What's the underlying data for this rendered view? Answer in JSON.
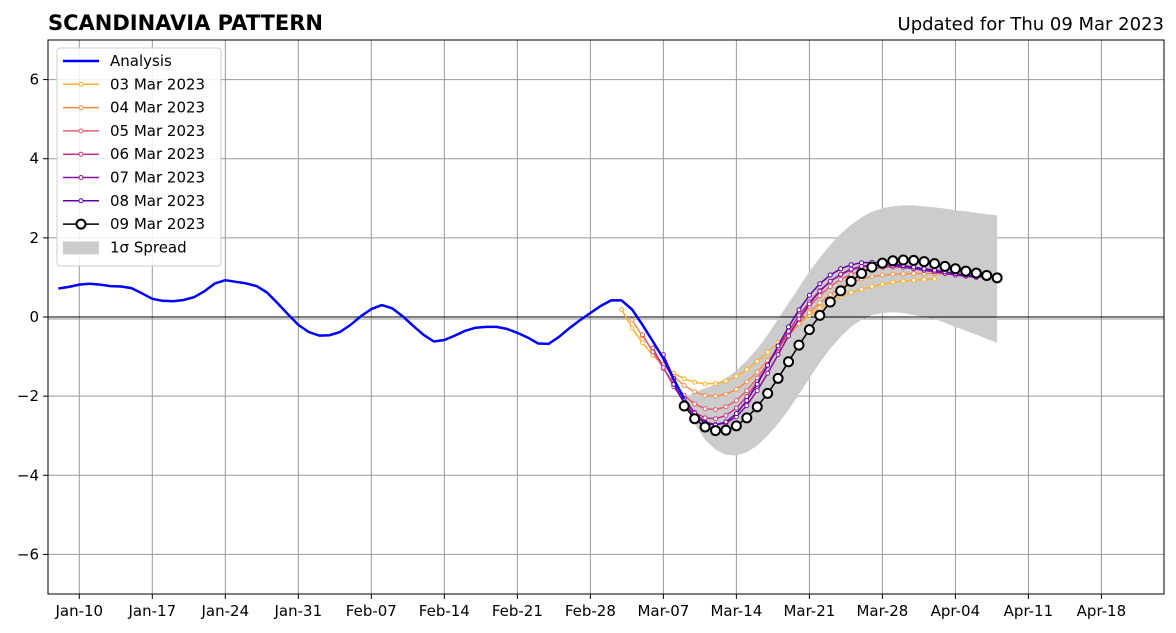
{
  "chart_data": {
    "type": "line",
    "title": "SCANDINAVIA PATTERN",
    "subtitle": "Updated for Thu 09 Mar 2023",
    "xlabel": "",
    "ylabel": "",
    "xlim": [
      "2023-01-07",
      "2023-04-24"
    ],
    "ylim": [
      -7,
      7
    ],
    "x_ticks": [
      "Jan-10",
      "Jan-17",
      "Jan-24",
      "Jan-31",
      "Feb-07",
      "Feb-14",
      "Feb-21",
      "Feb-28",
      "Mar-07",
      "Mar-14",
      "Mar-21",
      "Mar-28",
      "Apr-04",
      "Apr-11",
      "Apr-18"
    ],
    "x_tick_dates": [
      "2023-01-10",
      "2023-01-17",
      "2023-01-24",
      "2023-01-31",
      "2023-02-07",
      "2023-02-14",
      "2023-02-21",
      "2023-02-28",
      "2023-03-07",
      "2023-03-14",
      "2023-03-21",
      "2023-03-28",
      "2023-04-04",
      "2023-04-11",
      "2023-04-18"
    ],
    "y_ticks": [
      -6,
      -4,
      -2,
      0,
      2,
      4,
      6
    ],
    "y_tick_labels": [
      "−6",
      "−4",
      "−2",
      "0",
      "2",
      "4",
      "6"
    ],
    "grid": true,
    "legend_placement": "top-left",
    "series": [
      {
        "name": "Analysis",
        "color": "#0000ff",
        "marker": "none",
        "x": [
          "2023-01-08",
          "2023-01-09",
          "2023-01-10",
          "2023-01-11",
          "2023-01-12",
          "2023-01-13",
          "2023-01-14",
          "2023-01-15",
          "2023-01-16",
          "2023-01-17",
          "2023-01-18",
          "2023-01-19",
          "2023-01-20",
          "2023-01-21",
          "2023-01-22",
          "2023-01-23",
          "2023-01-24",
          "2023-01-25",
          "2023-01-26",
          "2023-01-27",
          "2023-01-28",
          "2023-01-29",
          "2023-01-30",
          "2023-01-31",
          "2023-02-01",
          "2023-02-02",
          "2023-02-03",
          "2023-02-04",
          "2023-02-05",
          "2023-02-06",
          "2023-02-07",
          "2023-02-08",
          "2023-02-09",
          "2023-02-10",
          "2023-02-11",
          "2023-02-12",
          "2023-02-13",
          "2023-02-14",
          "2023-02-15",
          "2023-02-16",
          "2023-02-17",
          "2023-02-18",
          "2023-02-19",
          "2023-02-20",
          "2023-02-21",
          "2023-02-22",
          "2023-02-23",
          "2023-02-24",
          "2023-02-25",
          "2023-02-26",
          "2023-02-27",
          "2023-02-28",
          "2023-03-01",
          "2023-03-02",
          "2023-03-03",
          "2023-03-04",
          "2023-03-05",
          "2023-03-06",
          "2023-03-07",
          "2023-03-08",
          "2023-03-09"
        ],
        "y": [
          0.72,
          0.76,
          0.82,
          0.84,
          0.82,
          0.78,
          0.77,
          0.73,
          0.6,
          0.46,
          0.41,
          0.4,
          0.43,
          0.5,
          0.65,
          0.85,
          0.93,
          0.89,
          0.85,
          0.78,
          0.62,
          0.35,
          0.07,
          -0.2,
          -0.38,
          -0.47,
          -0.46,
          -0.38,
          -0.2,
          0.02,
          0.2,
          0.3,
          0.22,
          0.02,
          -0.22,
          -0.45,
          -0.62,
          -0.58,
          -0.47,
          -0.35,
          -0.27,
          -0.25,
          -0.25,
          -0.3,
          -0.4,
          -0.52,
          -0.67,
          -0.68,
          -0.5,
          -0.28,
          -0.08,
          0.1,
          0.28,
          0.42,
          0.42,
          0.19,
          -0.2,
          -0.62,
          -1.05,
          -1.58,
          -2.07
        ]
      },
      {
        "name": "03 Mar 2023",
        "color": "#fbb12e",
        "marker": "small-dot",
        "x": [
          "2023-03-03",
          "2023-03-04",
          "2023-03-05",
          "2023-03-06",
          "2023-03-07",
          "2023-03-08",
          "2023-03-09",
          "2023-03-10",
          "2023-03-11",
          "2023-03-12",
          "2023-03-13",
          "2023-03-14",
          "2023-03-15",
          "2023-03-16",
          "2023-03-17",
          "2023-03-18",
          "2023-03-19",
          "2023-03-20",
          "2023-03-21",
          "2023-03-22",
          "2023-03-23",
          "2023-03-24",
          "2023-03-25",
          "2023-03-26",
          "2023-03-27",
          "2023-03-28",
          "2023-03-29",
          "2023-03-30",
          "2023-03-31",
          "2023-04-01",
          "2023-04-02"
        ],
        "y": [
          0.19,
          -0.28,
          -0.65,
          -0.97,
          -1.22,
          -1.42,
          -1.56,
          -1.65,
          -1.69,
          -1.68,
          -1.62,
          -1.5,
          -1.33,
          -1.12,
          -0.89,
          -0.65,
          -0.4,
          -0.17,
          0.05,
          0.23,
          0.39,
          0.52,
          0.62,
          0.7,
          0.77,
          0.83,
          0.88,
          0.91,
          0.93,
          0.95,
          0.96
        ]
      },
      {
        "name": "04 Mar 2023",
        "color": "#f58e4a",
        "marker": "small-dot",
        "x": [
          "2023-03-04",
          "2023-03-05",
          "2023-03-06",
          "2023-03-07",
          "2023-03-08",
          "2023-03-09",
          "2023-03-10",
          "2023-03-11",
          "2023-03-12",
          "2023-03-13",
          "2023-03-14",
          "2023-03-15",
          "2023-03-16",
          "2023-03-17",
          "2023-03-18",
          "2023-03-19",
          "2023-03-20",
          "2023-03-21",
          "2023-03-22",
          "2023-03-23",
          "2023-03-24",
          "2023-03-25",
          "2023-03-26",
          "2023-03-27",
          "2023-03-28",
          "2023-03-29",
          "2023-03-30",
          "2023-03-31",
          "2023-04-01",
          "2023-04-02",
          "2023-04-03"
        ],
        "y": [
          -0.08,
          -0.48,
          -0.86,
          -1.21,
          -1.5,
          -1.73,
          -1.89,
          -1.98,
          -2.0,
          -1.95,
          -1.83,
          -1.64,
          -1.39,
          -1.1,
          -0.79,
          -0.47,
          -0.17,
          0.11,
          0.36,
          0.57,
          0.74,
          0.87,
          0.96,
          1.02,
          1.06,
          1.08,
          1.09,
          1.1,
          1.1,
          1.1,
          1.09
        ]
      },
      {
        "name": "05 Mar 2023",
        "color": "#e2626f",
        "marker": "small-dot",
        "x": [
          "2023-03-05",
          "2023-03-06",
          "2023-03-07",
          "2023-03-08",
          "2023-03-09",
          "2023-03-10",
          "2023-03-11",
          "2023-03-12",
          "2023-03-13",
          "2023-03-14",
          "2023-03-15",
          "2023-03-16",
          "2023-03-17",
          "2023-03-18",
          "2023-03-19",
          "2023-03-20",
          "2023-03-21",
          "2023-03-22",
          "2023-03-23",
          "2023-03-24",
          "2023-03-25",
          "2023-03-26",
          "2023-03-27",
          "2023-03-28",
          "2023-03-29",
          "2023-03-30",
          "2023-03-31",
          "2023-04-01",
          "2023-04-02",
          "2023-04-03",
          "2023-04-04"
        ],
        "y": [
          -0.45,
          -0.88,
          -1.3,
          -1.68,
          -1.98,
          -2.2,
          -2.32,
          -2.34,
          -2.27,
          -2.11,
          -1.86,
          -1.54,
          -1.18,
          -0.8,
          -0.42,
          -0.06,
          0.27,
          0.54,
          0.77,
          0.95,
          1.08,
          1.17,
          1.22,
          1.25,
          1.26,
          1.26,
          1.24,
          1.22,
          1.18,
          1.14,
          1.09
        ]
      },
      {
        "name": "06 Mar 2023",
        "color": "#c0368a",
        "marker": "small-dot",
        "x": [
          "2023-03-06",
          "2023-03-07",
          "2023-03-08",
          "2023-03-09",
          "2023-03-10",
          "2023-03-11",
          "2023-03-12",
          "2023-03-13",
          "2023-03-14",
          "2023-03-15",
          "2023-03-16",
          "2023-03-17",
          "2023-03-18",
          "2023-03-19",
          "2023-03-20",
          "2023-03-21",
          "2023-03-22",
          "2023-03-23",
          "2023-03-24",
          "2023-03-25",
          "2023-03-26",
          "2023-03-27",
          "2023-03-28",
          "2023-03-29",
          "2023-03-30",
          "2023-03-31",
          "2023-04-01",
          "2023-04-02",
          "2023-04-03",
          "2023-04-04",
          "2023-04-05"
        ],
        "y": [
          -0.78,
          -1.28,
          -1.76,
          -2.15,
          -2.41,
          -2.55,
          -2.57,
          -2.49,
          -2.3,
          -2.01,
          -1.64,
          -1.22,
          -0.78,
          -0.36,
          0.04,
          0.38,
          0.67,
          0.9,
          1.07,
          1.19,
          1.26,
          1.3,
          1.31,
          1.3,
          1.28,
          1.25,
          1.21,
          1.17,
          1.13,
          1.09,
          1.06
        ]
      },
      {
        "name": "07 Mar 2023",
        "color": "#8e0fa5",
        "marker": "small-dot",
        "x": [
          "2023-03-07",
          "2023-03-08",
          "2023-03-09",
          "2023-03-10",
          "2023-03-11",
          "2023-03-12",
          "2023-03-13",
          "2023-03-14",
          "2023-03-15",
          "2023-03-16",
          "2023-03-17",
          "2023-03-18",
          "2023-03-19",
          "2023-03-20",
          "2023-03-21",
          "2023-03-22",
          "2023-03-23",
          "2023-03-24",
          "2023-03-25",
          "2023-03-26",
          "2023-03-27",
          "2023-03-28",
          "2023-03-29",
          "2023-03-30",
          "2023-03-31",
          "2023-04-01",
          "2023-04-02",
          "2023-04-03",
          "2023-04-04",
          "2023-04-05",
          "2023-04-06"
        ],
        "y": [
          -0.95,
          -1.55,
          -2.05,
          -2.43,
          -2.65,
          -2.72,
          -2.68,
          -2.52,
          -2.24,
          -1.86,
          -1.42,
          -0.95,
          -0.48,
          -0.05,
          0.33,
          0.65,
          0.9,
          1.08,
          1.21,
          1.28,
          1.31,
          1.31,
          1.29,
          1.26,
          1.22,
          1.18,
          1.14,
          1.1,
          1.06,
          1.03,
          1.0
        ]
      },
      {
        "name": "08 Mar 2023",
        "color": "#5c02a3",
        "marker": "small-dot",
        "x": [
          "2023-03-08",
          "2023-03-09",
          "2023-03-10",
          "2023-03-11",
          "2023-03-12",
          "2023-03-13",
          "2023-03-14",
          "2023-03-15",
          "2023-03-16",
          "2023-03-17",
          "2023-03-18",
          "2023-03-19",
          "2023-03-20",
          "2023-03-21",
          "2023-03-22",
          "2023-03-23",
          "2023-03-24",
          "2023-03-25",
          "2023-03-26",
          "2023-03-27",
          "2023-03-28",
          "2023-03-29",
          "2023-03-30",
          "2023-03-31",
          "2023-04-01",
          "2023-04-02",
          "2023-04-03",
          "2023-04-04",
          "2023-04-05",
          "2023-04-06",
          "2023-04-07"
        ],
        "y": [
          -1.7,
          -2.18,
          -2.5,
          -2.68,
          -2.73,
          -2.65,
          -2.44,
          -2.11,
          -1.7,
          -1.22,
          -0.73,
          -0.25,
          0.18,
          0.55,
          0.84,
          1.06,
          1.22,
          1.32,
          1.37,
          1.38,
          1.37,
          1.34,
          1.3,
          1.26,
          1.22,
          1.18,
          1.14,
          1.1,
          1.06,
          1.03,
          1.0
        ]
      },
      {
        "name": "09 Mar 2023",
        "color": "#000000",
        "marker": "open-circle",
        "x": [
          "2023-03-09",
          "2023-03-10",
          "2023-03-11",
          "2023-03-12",
          "2023-03-13",
          "2023-03-14",
          "2023-03-15",
          "2023-03-16",
          "2023-03-17",
          "2023-03-18",
          "2023-03-19",
          "2023-03-20",
          "2023-03-21",
          "2023-03-22",
          "2023-03-23",
          "2023-03-24",
          "2023-03-25",
          "2023-03-26",
          "2023-03-27",
          "2023-03-28",
          "2023-03-29",
          "2023-03-30",
          "2023-03-31",
          "2023-04-01",
          "2023-04-02",
          "2023-04-03",
          "2023-04-04",
          "2023-04-05",
          "2023-04-06",
          "2023-04-07",
          "2023-04-08"
        ],
        "y": [
          -2.25,
          -2.57,
          -2.78,
          -2.87,
          -2.86,
          -2.75,
          -2.55,
          -2.27,
          -1.93,
          -1.55,
          -1.13,
          -0.71,
          -0.32,
          0.04,
          0.38,
          0.66,
          0.9,
          1.1,
          1.26,
          1.36,
          1.42,
          1.44,
          1.43,
          1.4,
          1.35,
          1.28,
          1.22,
          1.16,
          1.11,
          1.05,
          0.99
        ]
      }
    ],
    "spread": {
      "name": "1σ Spread",
      "color": "#cccccc",
      "x": [
        "2023-03-09",
        "2023-03-10",
        "2023-03-11",
        "2023-03-12",
        "2023-03-13",
        "2023-03-14",
        "2023-03-15",
        "2023-03-16",
        "2023-03-17",
        "2023-03-18",
        "2023-03-19",
        "2023-03-20",
        "2023-03-21",
        "2023-03-22",
        "2023-03-23",
        "2023-03-24",
        "2023-03-25",
        "2023-03-26",
        "2023-03-27",
        "2023-03-28",
        "2023-03-29",
        "2023-03-30",
        "2023-03-31",
        "2023-04-01",
        "2023-04-02",
        "2023-04-03",
        "2023-04-04",
        "2023-04-05",
        "2023-04-06",
        "2023-04-07",
        "2023-04-08"
      ],
      "lower": [
        -2.1,
        -2.7,
        -3.1,
        -3.35,
        -3.48,
        -3.5,
        -3.42,
        -3.25,
        -3.0,
        -2.7,
        -2.35,
        -1.95,
        -1.55,
        -1.15,
        -0.8,
        -0.5,
        -0.25,
        -0.07,
        0.05,
        0.1,
        0.12,
        0.1,
        0.05,
        0.0,
        -0.05,
        -0.15,
        -0.25,
        -0.35,
        -0.45,
        -0.55,
        -0.65
      ],
      "upper": [
        -2.05,
        -1.9,
        -1.8,
        -1.7,
        -1.55,
        -1.35,
        -1.1,
        -0.8,
        -0.45,
        -0.05,
        0.35,
        0.75,
        1.15,
        1.5,
        1.82,
        2.1,
        2.33,
        2.52,
        2.66,
        2.75,
        2.8,
        2.82,
        2.82,
        2.8,
        2.77,
        2.74,
        2.7,
        2.67,
        2.63,
        2.6,
        2.57
      ]
    }
  }
}
